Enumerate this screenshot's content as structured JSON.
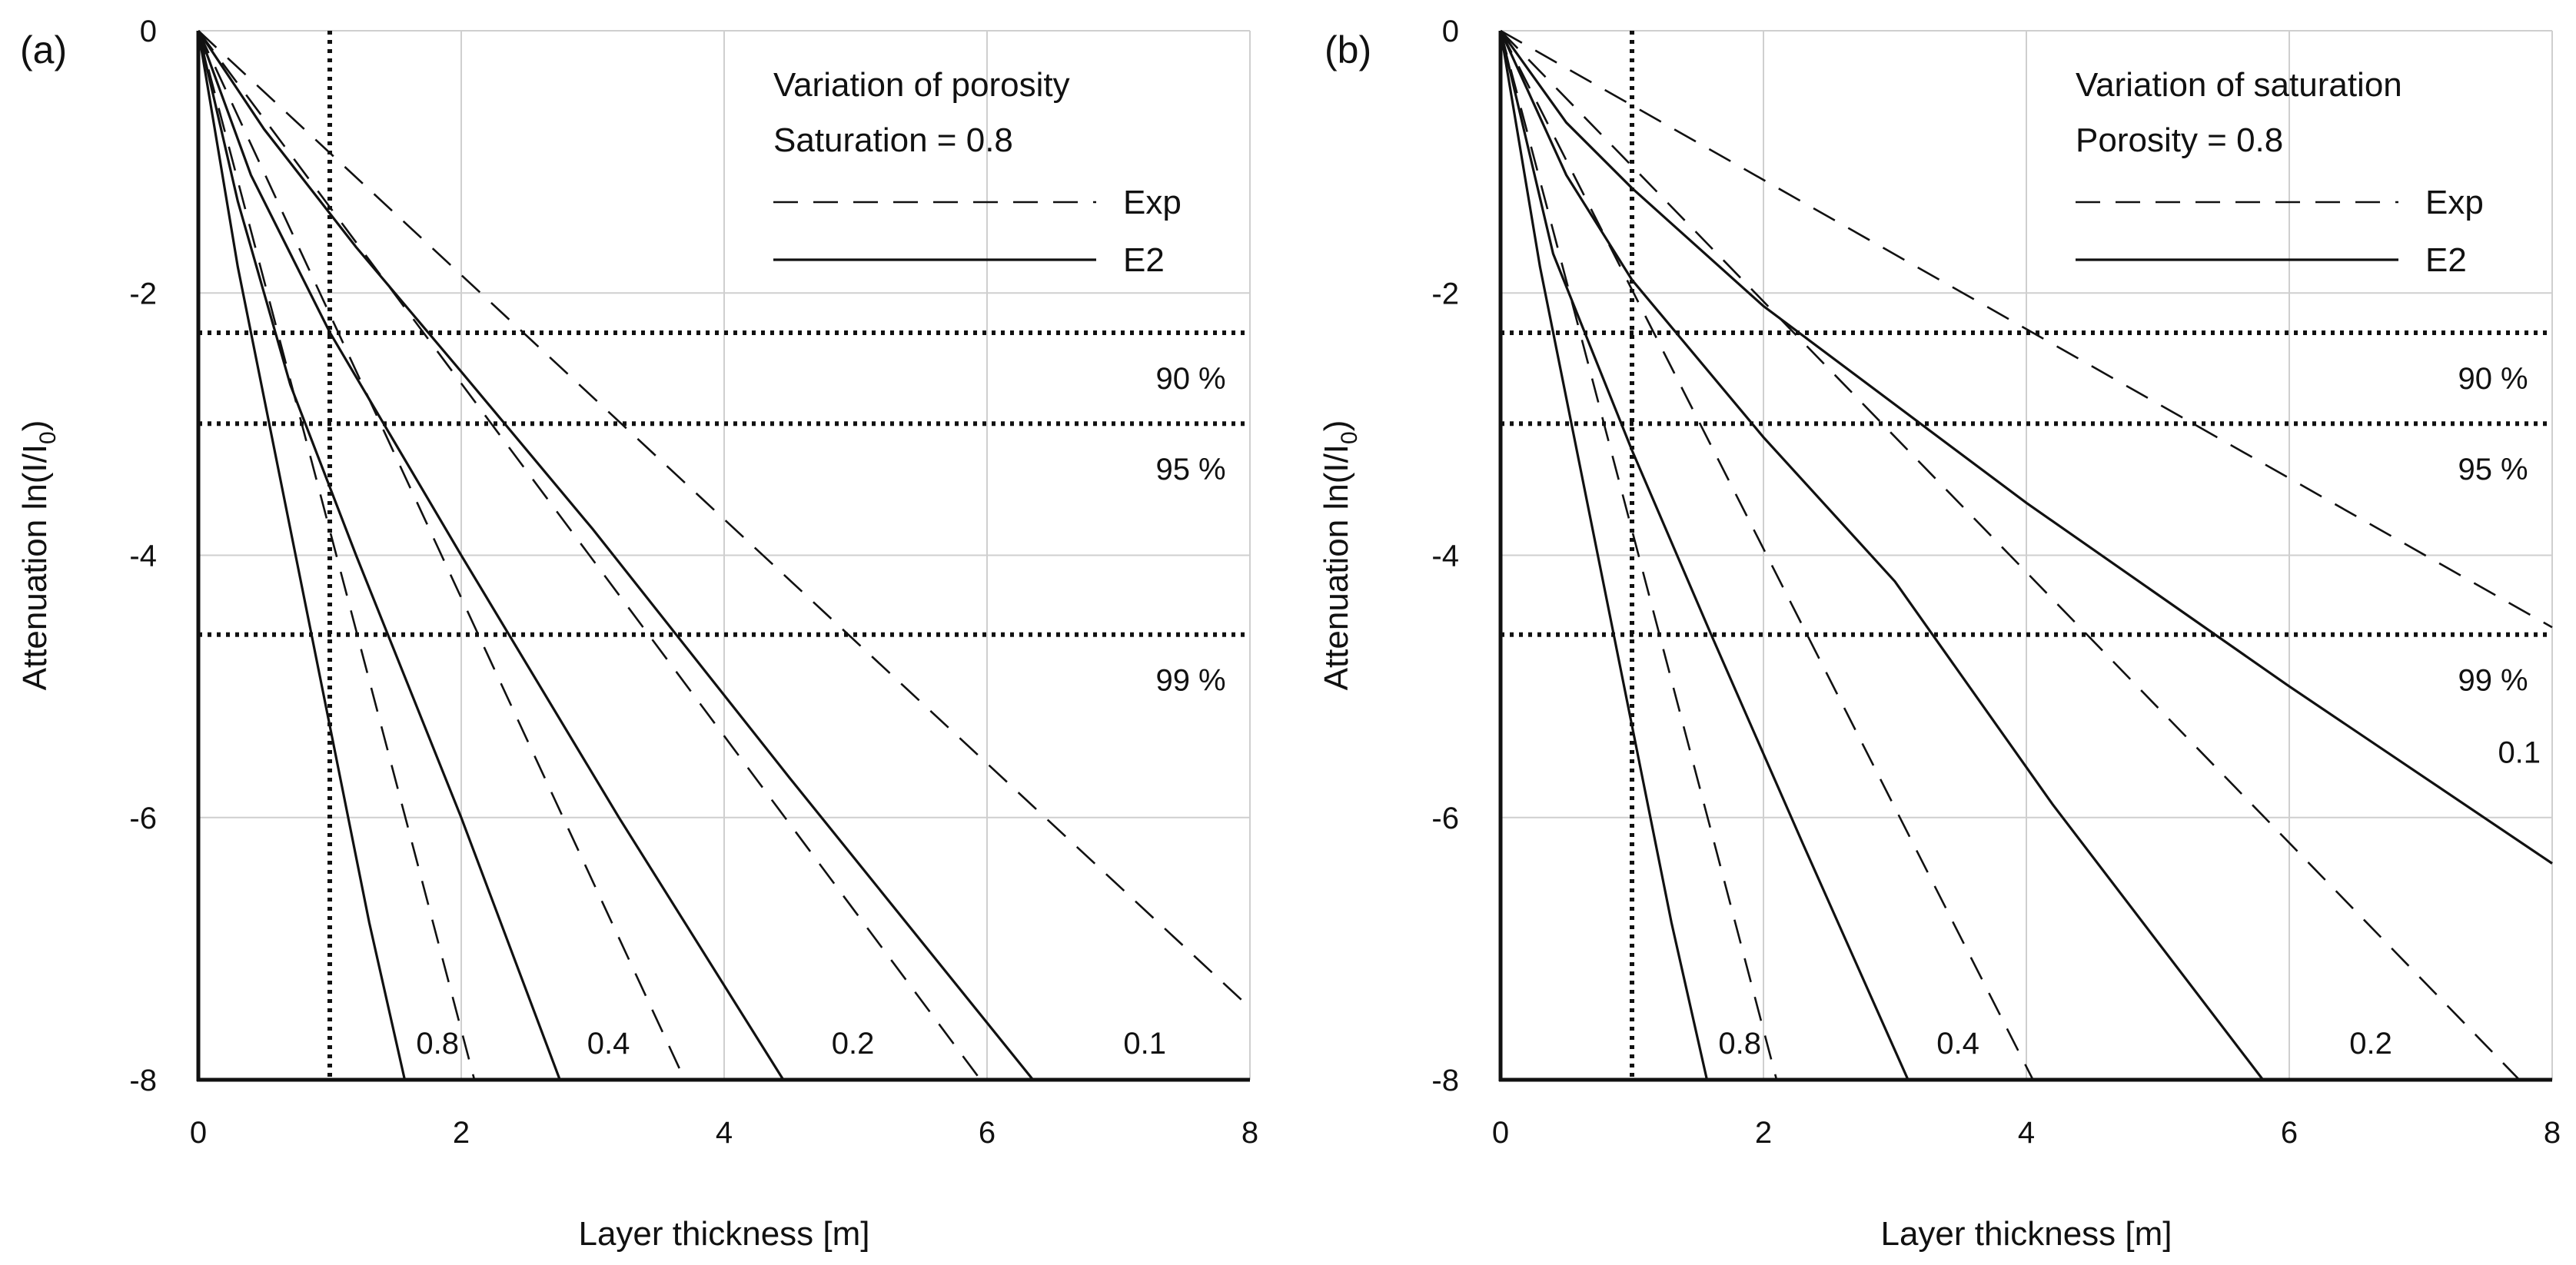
{
  "figure": {
    "chart_data": [
      {
        "type": "line",
        "panel": "(a)",
        "xlabel": "Layer thickness [m]",
        "ylabel": "Attenuation ln(I/I0)",
        "ylabel_parts": {
          "a": "Attenuation ln(I/I",
          "sub": "0",
          "b": ")"
        },
        "xlim": [
          0,
          8
        ],
        "ylim": [
          -8,
          0
        ],
        "xticks": [
          0,
          2,
          4,
          6,
          8
        ],
        "yticks": [
          0,
          -2,
          -4,
          -6,
          -8
        ],
        "grid": true,
        "legend": {
          "title_lines": [
            "Variation of porosity",
            "Saturation = 0.8"
          ],
          "entries": [
            {
              "label": "Exp",
              "style": "dashed"
            },
            {
              "label": "E2",
              "style": "solid"
            }
          ]
        },
        "reference_lines": {
          "horizontal": [
            {
              "y": -2.303,
              "label": "90 %"
            },
            {
              "y": -2.996,
              "label": "95 %"
            },
            {
              "y": -4.605,
              "label": "99 %"
            }
          ],
          "vertical": [
            {
              "x": 1.0
            }
          ]
        },
        "series": [
          {
            "name": "Exp 0.8",
            "style": "dashed",
            "x": [
              0,
              2.1
            ],
            "y": [
              0,
              -8
            ]
          },
          {
            "name": "Exp 0.4",
            "style": "dashed",
            "x": [
              0,
              3.7
            ],
            "y": [
              0,
              -8
            ]
          },
          {
            "name": "Exp 0.2",
            "style": "dashed",
            "x": [
              0,
              5.95
            ],
            "y": [
              0,
              -8
            ]
          },
          {
            "name": "Exp 0.1",
            "style": "dashed",
            "x": [
              0,
              8.0
            ],
            "y": [
              0,
              -7.45
            ]
          },
          {
            "name": "E2 0.8",
            "style": "solid",
            "x": [
              0,
              0.3,
              0.6,
              1.0,
              1.3,
              1.57
            ],
            "y": [
              0,
              -1.8,
              -3.3,
              -5.3,
              -6.8,
              -8.0
            ]
          },
          {
            "name": "E2 0.4",
            "style": "solid",
            "x": [
              0,
              0.3,
              0.7,
              1.2,
              2.0,
              2.75
            ],
            "y": [
              0,
              -1.3,
              -2.7,
              -4.0,
              -6.0,
              -8.0
            ]
          },
          {
            "name": "E2 0.2",
            "style": "solid",
            "x": [
              0,
              0.4,
              1.0,
              2.0,
              3.2,
              4.45
            ],
            "y": [
              0,
              -1.1,
              -2.3,
              -4.0,
              -6.0,
              -8.0
            ]
          },
          {
            "name": "E2 0.1",
            "style": "solid",
            "x": [
              0,
              0.5,
              1.2,
              2.0,
              3.0,
              4.5,
              6.35
            ],
            "y": [
              0,
              -0.75,
              -1.65,
              -2.6,
              -3.8,
              -5.7,
              -8.0
            ]
          }
        ],
        "curve_labels": [
          {
            "text": "0.8",
            "x": 1.82,
            "y": -7.72
          },
          {
            "text": "0.4",
            "x": 3.12,
            "y": -7.72
          },
          {
            "text": "0.2",
            "x": 4.98,
            "y": -7.72
          },
          {
            "text": "0.1",
            "x": 7.2,
            "y": -7.72
          },
          {
            "text": "90 %",
            "x": 7.55,
            "y": -2.65
          },
          {
            "text": "95 %",
            "x": 7.55,
            "y": -3.34
          },
          {
            "text": "99 %",
            "x": 7.55,
            "y": -4.95
          }
        ]
      },
      {
        "type": "line",
        "panel": "(b)",
        "xlabel": "Layer thickness [m]",
        "ylabel": "Attenuation ln(I/I0)",
        "ylabel_parts": {
          "a": "Attenuation ln(I/I",
          "sub": "0",
          "b": ")"
        },
        "xlim": [
          0,
          8
        ],
        "ylim": [
          -8,
          0
        ],
        "xticks": [
          0,
          2,
          4,
          6,
          8
        ],
        "yticks": [
          0,
          -2,
          -4,
          -6,
          -8
        ],
        "grid": true,
        "legend": {
          "title_lines": [
            "Variation of saturation",
            "Porosity = 0.8"
          ],
          "entries": [
            {
              "label": "Exp",
              "style": "dashed"
            },
            {
              "label": "E2",
              "style": "solid"
            }
          ]
        },
        "reference_lines": {
          "horizontal": [
            {
              "y": -2.303,
              "label": "90 %"
            },
            {
              "y": -2.996,
              "label": "95 %"
            },
            {
              "y": -4.605,
              "label": "99 %"
            }
          ],
          "vertical": [
            {
              "x": 1.0
            }
          ]
        },
        "series": [
          {
            "name": "Exp 0.8",
            "style": "dashed",
            "x": [
              0,
              2.1
            ],
            "y": [
              0,
              -8
            ]
          },
          {
            "name": "Exp 0.4",
            "style": "dashed",
            "x": [
              0,
              4.05
            ],
            "y": [
              0,
              -8
            ]
          },
          {
            "name": "Exp 0.2",
            "style": "dashed",
            "x": [
              0,
              7.75
            ],
            "y": [
              0,
              -8
            ]
          },
          {
            "name": "Exp 0.1",
            "style": "dashed",
            "x": [
              0,
              8.0
            ],
            "y": [
              0,
              -4.55
            ]
          },
          {
            "name": "E2 0.8",
            "style": "solid",
            "x": [
              0,
              0.3,
              0.6,
              1.0,
              1.3,
              1.57
            ],
            "y": [
              0,
              -1.8,
              -3.3,
              -5.3,
              -6.8,
              -8.0
            ]
          },
          {
            "name": "E2 0.4",
            "style": "solid",
            "x": [
              0,
              0.4,
              1.0,
              1.6,
              2.3,
              3.1
            ],
            "y": [
              0,
              -1.7,
              -3.2,
              -4.6,
              -6.2,
              -8.0
            ]
          },
          {
            "name": "E2 0.2",
            "style": "solid",
            "x": [
              0,
              0.5,
              1.0,
              2.0,
              3.0,
              4.2,
              5.8
            ],
            "y": [
              0,
              -1.1,
              -1.9,
              -3.1,
              -4.2,
              -5.9,
              -8.0
            ]
          },
          {
            "name": "E2 0.1",
            "style": "solid",
            "x": [
              0,
              0.5,
              1.0,
              2.0,
              4.0,
              6.0,
              8.0
            ],
            "y": [
              0,
              -0.7,
              -1.2,
              -2.1,
              -3.6,
              -5.0,
              -6.35
            ]
          }
        ],
        "curve_labels": [
          {
            "text": "0.8",
            "x": 1.82,
            "y": -7.72
          },
          {
            "text": "0.4",
            "x": 3.48,
            "y": -7.72
          },
          {
            "text": "0.2",
            "x": 6.62,
            "y": -7.72
          },
          {
            "text": "0.1",
            "x": 7.75,
            "y": -5.5
          },
          {
            "text": "90 %",
            "x": 7.55,
            "y": -2.65
          },
          {
            "text": "95 %",
            "x": 7.55,
            "y": -3.34
          },
          {
            "text": "99 %",
            "x": 7.55,
            "y": -4.95
          }
        ]
      }
    ]
  }
}
